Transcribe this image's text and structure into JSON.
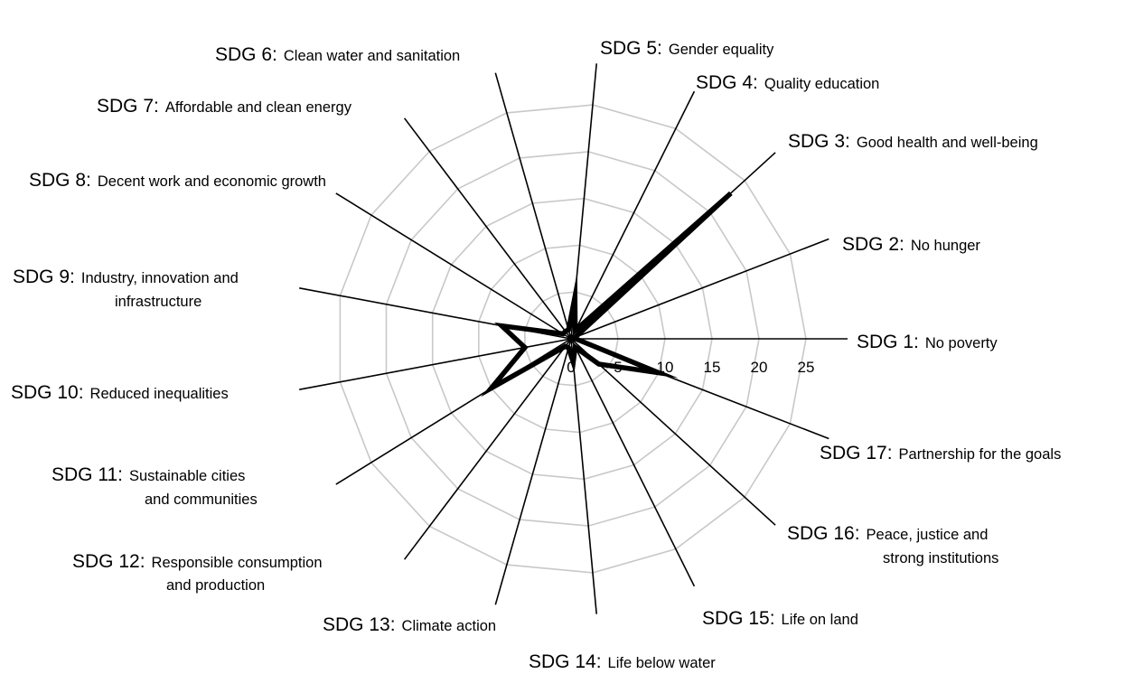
{
  "chart_data": {
    "type": "radar",
    "title": "",
    "radial_ticks": [
      "0",
      "5",
      "10",
      "15",
      "20",
      "25"
    ],
    "r_range": [
      0,
      25
    ],
    "grid": true,
    "categories": [
      {
        "code": "SDG 1:",
        "desc": [
          "No poverty"
        ],
        "value": 0.5
      },
      {
        "code": "SDG 2:",
        "desc": [
          "No hunger"
        ],
        "value": 0.5
      },
      {
        "code": "SDG 3:",
        "desc": [
          "Good health and well-being"
        ],
        "value": 23
      },
      {
        "code": "SDG 4:",
        "desc": [
          "Quality education"
        ],
        "value": 1
      },
      {
        "code": "SDG 5:",
        "desc": [
          "Gender equality"
        ],
        "value": 4.5
      },
      {
        "code": "SDG 6:",
        "desc": [
          "Clean water and sanitation"
        ],
        "value": 1
      },
      {
        "code": "SDG 7:",
        "desc": [
          "Affordable and clean energy"
        ],
        "value": 1
      },
      {
        "code": "SDG 8:",
        "desc": [
          "Decent work and economic growth"
        ],
        "value": 1
      },
      {
        "code": "SDG 9:",
        "desc": [
          "Industry, innovation and",
          "infrastructure"
        ],
        "value": 7.5
      },
      {
        "code": "SDG 10:",
        "desc": [
          "Reduced inequalities"
        ],
        "value": 5
      },
      {
        "code": "SDG 11:",
        "desc": [
          "Sustainable cities",
          "and communities"
        ],
        "value": 10
      },
      {
        "code": "SDG 12:",
        "desc": [
          "Responsible consumption",
          "and production"
        ],
        "value": 1
      },
      {
        "code": "SDG 13:",
        "desc": [
          "Climate action"
        ],
        "value": 1
      },
      {
        "code": "SDG 14:",
        "desc": [
          "Life below water"
        ],
        "value": 2.5
      },
      {
        "code": "SDG 15:",
        "desc": [
          "Life on land"
        ],
        "value": 1
      },
      {
        "code": "SDG 16:",
        "desc": [
          "Peace, justice and",
          "strong institutions"
        ],
        "value": 4
      },
      {
        "code": "SDG 17:",
        "desc": [
          "Partnership for the goals"
        ],
        "value": 10
      }
    ],
    "colors": {
      "series": "#000000",
      "axes": "#000000",
      "grid": "#c8c8c8"
    }
  }
}
